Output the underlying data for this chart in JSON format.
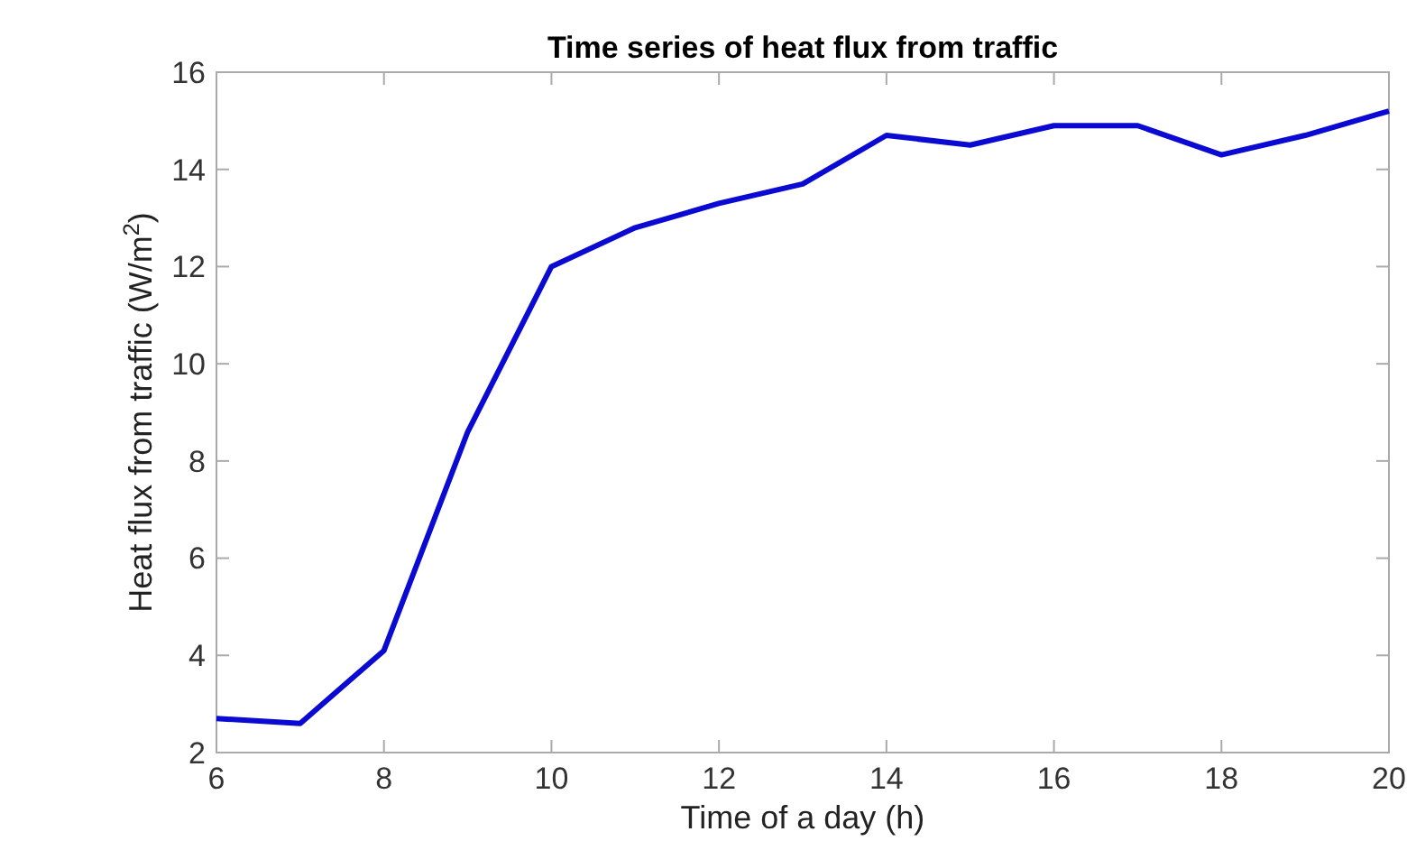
{
  "chart_data": {
    "type": "line",
    "title": "Time series of heat flux from traffic",
    "xlabel": "Time of a day (h)",
    "ylabel": "Heat flux from traffic (W/m$^{2}$)",
    "x": [
      6,
      7,
      8,
      9,
      10,
      11,
      12,
      13,
      14,
      15,
      16,
      17,
      18,
      19,
      20
    ],
    "series": [
      {
        "color": "#0a0ad2",
        "values": [
          2.7,
          2.6,
          4.1,
          8.6,
          12,
          12.8,
          13.3,
          13.7,
          14.7,
          14.5,
          14.9,
          14.9,
          14.3,
          14.7,
          15.2
        ]
      }
    ],
    "xlim": [
      6,
      20
    ],
    "xticks": [
      6,
      8,
      10,
      12,
      14,
      16,
      18,
      20
    ],
    "ylim": [
      2,
      16
    ],
    "yticks": [
      2,
      4,
      6,
      8,
      10,
      12,
      14,
      16
    ],
    "grid": false,
    "marker": "none",
    "line_style": "solid"
  }
}
